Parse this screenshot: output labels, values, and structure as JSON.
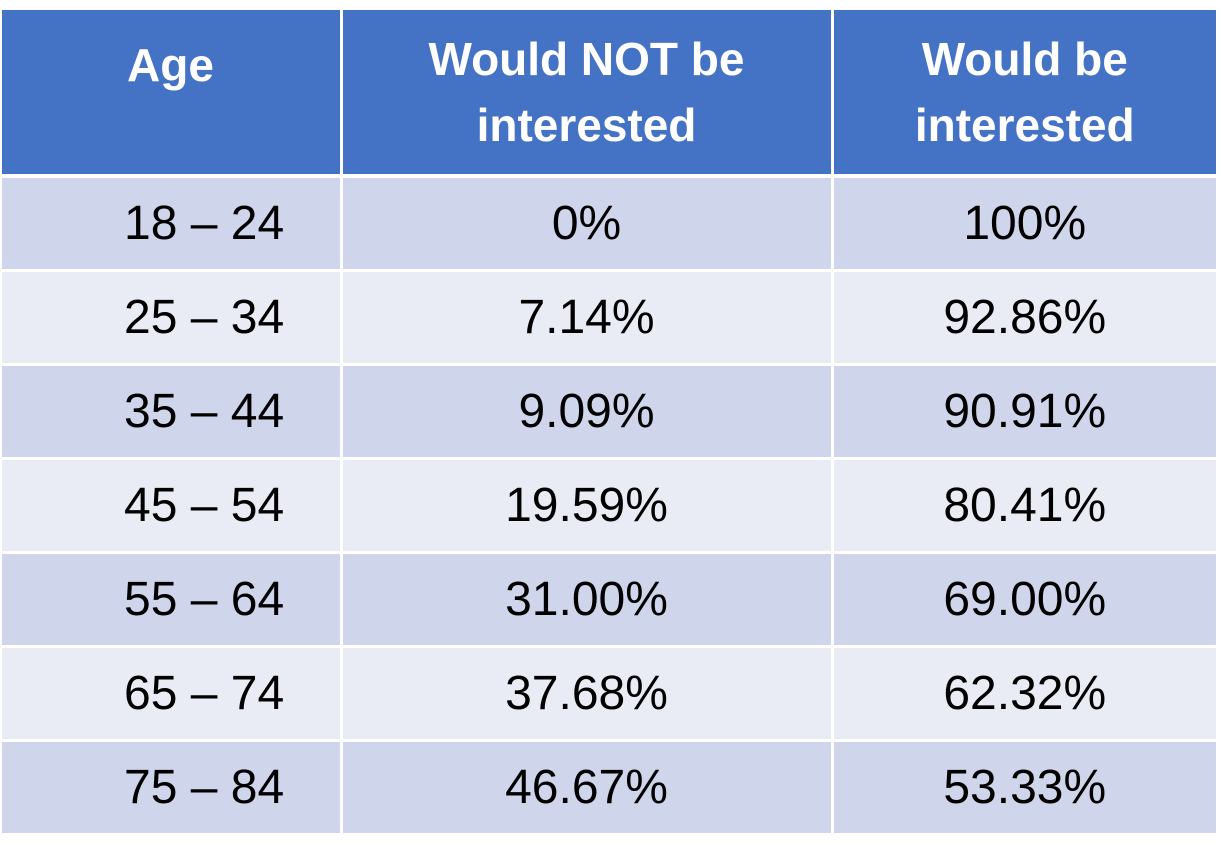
{
  "chart_data": {
    "type": "table",
    "columns": [
      "Age",
      "Would NOT be interested",
      "Would be interested"
    ],
    "rows": [
      {
        "age": "18 – 24",
        "not_interested": "0%",
        "interested": "100%"
      },
      {
        "age": "25 – 34",
        "not_interested": "7.14%",
        "interested": "92.86%"
      },
      {
        "age": "35 – 44",
        "not_interested": "9.09%",
        "interested": "90.91%"
      },
      {
        "age": "45 – 54",
        "not_interested": "19.59%",
        "interested": "80.41%"
      },
      {
        "age": "55 – 64",
        "not_interested": "31.00%",
        "interested": "69.00%"
      },
      {
        "age": "65 – 74",
        "not_interested": "37.68%",
        "interested": "62.32%"
      },
      {
        "age": "75 – 84",
        "not_interested": "46.67%",
        "interested": "53.33%"
      }
    ],
    "series": [
      {
        "name": "Would NOT be interested",
        "values": [
          0,
          7.14,
          9.09,
          19.59,
          31.0,
          37.68,
          46.67
        ]
      },
      {
        "name": "Would be interested",
        "values": [
          100,
          92.86,
          90.91,
          80.41,
          69.0,
          62.32,
          53.33
        ]
      }
    ],
    "categories": [
      "18 – 24",
      "25 – 34",
      "35 – 44",
      "45 – 54",
      "55 – 64",
      "65 – 74",
      "75 – 84"
    ]
  },
  "header": {
    "age": "Age",
    "not_interested_line1": "Would NOT be",
    "not_interested_line2": "interested",
    "interested_line1": "Would be",
    "interested_line2": "interested"
  },
  "colors": {
    "header_bg": "#4472c4",
    "header_text": "#ffffff",
    "row_band_dark": "#cfd5ea",
    "row_band_light": "#e9ebf5"
  }
}
